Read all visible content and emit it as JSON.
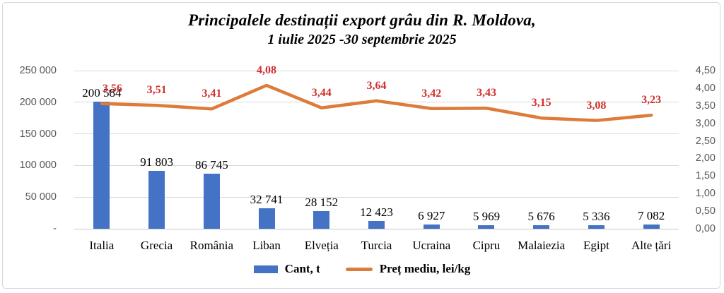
{
  "title": {
    "line1": "Principalele destinații export grâu din R. Moldova,",
    "line2": "1 iulie 2025 -30 septembrie 2025"
  },
  "colors": {
    "bar": "#4472c4",
    "line": "#dd7c3a",
    "point_label": "#cf312e",
    "gridline": "#dadada",
    "axis_text": "#595959",
    "frame_border": "#d8d8d8",
    "background": "#ffffff"
  },
  "chart_data": {
    "type": "bar",
    "subtype": "combo-bar-line-dual-axis",
    "title": "Principalele destinații export grâu din R. Moldova, 1 iulie 2025 -30 septembrie 2025",
    "categories": [
      "Italia",
      "Grecia",
      "România",
      "Liban",
      "Elveția",
      "Turcia",
      "Ucraina",
      "Cipru",
      "Malaiezia",
      "Egipt",
      "Alte țări"
    ],
    "series": [
      {
        "name": "Cant, t",
        "type": "bar",
        "axis": "left",
        "values": [
          200584,
          91803,
          86745,
          32741,
          28152,
          12423,
          6927,
          5969,
          5676,
          5336,
          7082
        ],
        "labels": [
          "200 584",
          "91 803",
          "86 745",
          "32 741",
          "28 152",
          "12 423",
          "6 927",
          "5 969",
          "5 676",
          "5 336",
          "7 082"
        ]
      },
      {
        "name": "Preț mediu, lei/kg",
        "type": "line",
        "axis": "right",
        "values": [
          3.56,
          3.51,
          3.41,
          4.08,
          3.44,
          3.64,
          3.42,
          3.43,
          3.15,
          3.08,
          3.23
        ],
        "labels": [
          "3,56",
          "3,51",
          "3,41",
          "4,08",
          "3,44",
          "3,64",
          "3,42",
          "3,43",
          "3,15",
          "3,08",
          "3,23"
        ]
      }
    ],
    "left_axis": {
      "min": 0,
      "max": 250000,
      "step": 50000,
      "tick_labels": [
        "-",
        "50 000",
        "100 000",
        "150 000",
        "200 000",
        "250 000"
      ]
    },
    "right_axis": {
      "min": 0,
      "max": 4.5,
      "step": 0.5,
      "tick_labels": [
        "0,00",
        "0,50",
        "1,00",
        "1,50",
        "2,00",
        "2,50",
        "3,00",
        "3,50",
        "4,00",
        "4,50"
      ]
    },
    "grid": "horizontal gridlines at left-axis major units",
    "legend_position": "bottom"
  }
}
